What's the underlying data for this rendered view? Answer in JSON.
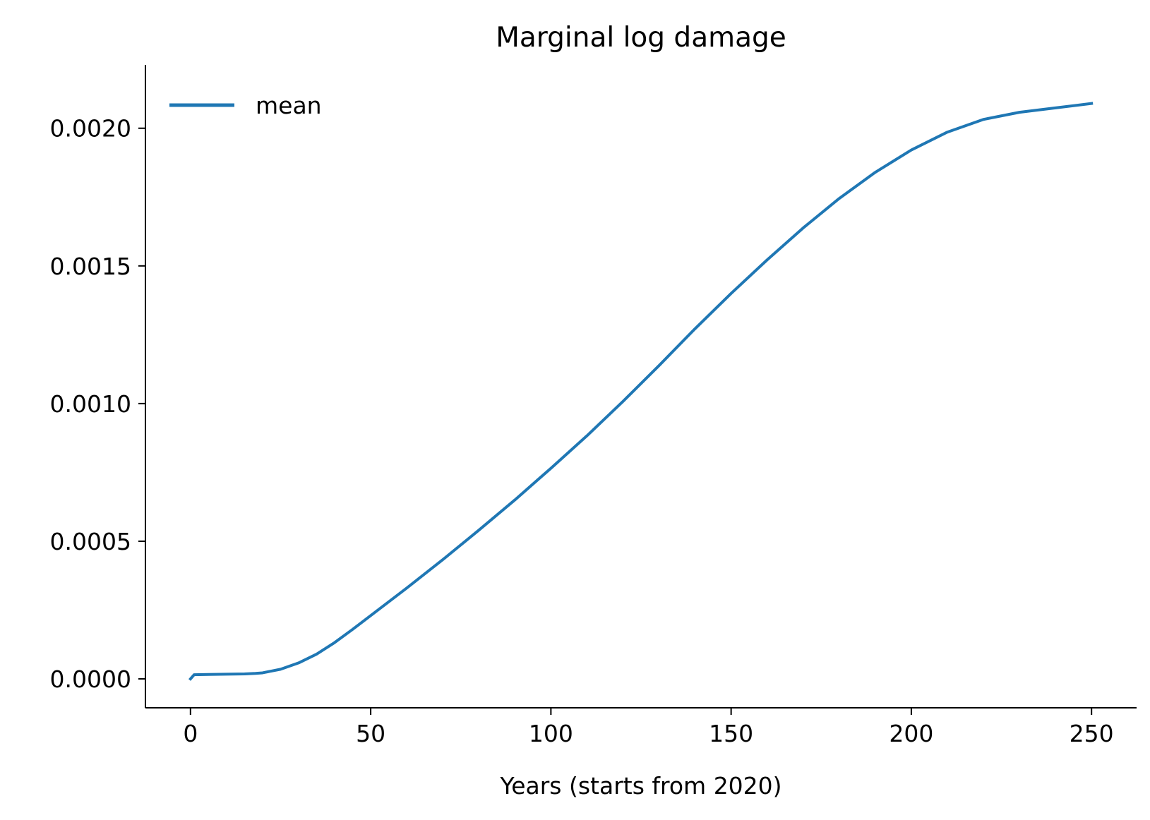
{
  "chart_data": {
    "type": "line",
    "title": "Marginal log damage",
    "xlabel": "Years (starts from 2020)",
    "ylabel": "",
    "xlim": [
      -12.5,
      262.5
    ],
    "ylim": [
      -0.000105,
      0.00223
    ],
    "xticks": [
      0,
      50,
      100,
      150,
      200,
      250
    ],
    "xtick_labels": [
      "0",
      "50",
      "100",
      "150",
      "200",
      "250"
    ],
    "yticks": [
      0.0,
      0.0005,
      0.001,
      0.0015,
      0.002
    ],
    "ytick_labels": [
      "0.0000",
      "0.0005",
      "0.0010",
      "0.0015",
      "0.0020"
    ],
    "grid": false,
    "legend_position": "top-left",
    "spines": [
      "left",
      "bottom"
    ],
    "series": [
      {
        "name": "mean",
        "color": "#1f77b4",
        "x": [
          0,
          1,
          5,
          10,
          15,
          18,
          20,
          25,
          30,
          35,
          40,
          45,
          50,
          60,
          70,
          80,
          90,
          100,
          110,
          120,
          130,
          140,
          150,
          160,
          170,
          180,
          190,
          200,
          210,
          220,
          230,
          240,
          250
        ],
        "y": [
          0.0,
          1.5e-05,
          1.6e-05,
          1.7e-05,
          1.8e-05,
          2e-05,
          2.2e-05,
          3.5e-05,
          5.8e-05,
          9e-05,
          0.000132,
          0.00018,
          0.00023,
          0.00033,
          0.000433,
          0.00054,
          0.00065,
          0.000765,
          0.000883,
          0.001008,
          0.001138,
          0.001272,
          0.0014,
          0.001522,
          0.001638,
          0.001745,
          0.00184,
          0.001921,
          0.001986,
          0.002032,
          0.002058,
          0.002074,
          0.00209
        ]
      }
    ]
  }
}
